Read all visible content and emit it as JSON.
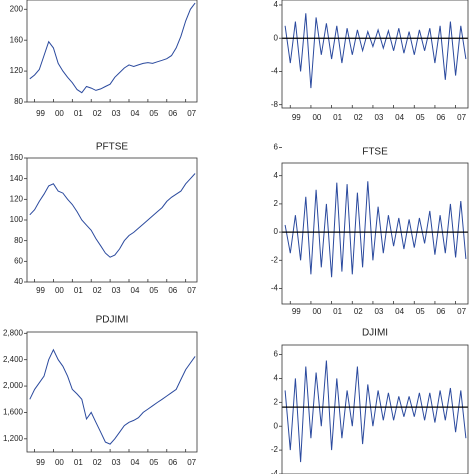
{
  "chart_data": [
    {
      "type": "line",
      "x": [
        1998.75,
        1999,
        1999.25,
        1999.5,
        1999.75,
        2000,
        2000.25,
        2000.5,
        2000.75,
        2001,
        2001.25,
        2001.5,
        2001.75,
        2002,
        2002.25,
        2002.5,
        2002.75,
        2003,
        2003.25,
        2003.5,
        2003.75,
        2004,
        2004.25,
        2004.5,
        2004.75,
        2005,
        2005.25,
        2005.5,
        2005.75,
        2006,
        2006.25,
        2006.5,
        2006.75,
        2007,
        2007.25,
        2007.5
      ],
      "series": [
        {
          "color": "#2b4a9e",
          "values": [
            110,
            115,
            122,
            140,
            158,
            150,
            130,
            120,
            112,
            105,
            96,
            92,
            100,
            98,
            95,
            97,
            100,
            103,
            112,
            118,
            124,
            128,
            126,
            128,
            130,
            131,
            130,
            132,
            134,
            136,
            140,
            150,
            165,
            185,
            200,
            208
          ]
        }
      ],
      "xlim": [
        1998.6,
        2007.6
      ],
      "xticks": [
        {
          "value": 1999,
          "label": "99"
        },
        {
          "value": 2000,
          "label": "00"
        },
        {
          "value": 2001,
          "label": "01"
        },
        {
          "value": 2002,
          "label": "02"
        },
        {
          "value": 2003,
          "label": "03"
        },
        {
          "value": 2004,
          "label": "04"
        },
        {
          "value": 2005,
          "label": "05"
        },
        {
          "value": 2006,
          "label": "06"
        },
        {
          "value": 2007,
          "label": "07"
        }
      ],
      "ylim": [
        80,
        212
      ],
      "yticks": [
        80,
        120,
        160,
        200
      ]
    },
    {
      "type": "line",
      "x": [
        1998.75,
        1999,
        1999.25,
        1999.5,
        1999.75,
        2000,
        2000.25,
        2000.5,
        2000.75,
        2001,
        2001.25,
        2001.5,
        2001.75,
        2002,
        2002.25,
        2002.5,
        2002.75,
        2003,
        2003.25,
        2003.5,
        2003.75,
        2004,
        2004.25,
        2004.5,
        2004.75,
        2005,
        2005.25,
        2005.5,
        2005.75,
        2006,
        2006.25,
        2006.5,
        2006.75,
        2007,
        2007.25,
        2007.5
      ],
      "series": [
        {
          "color": "#2b4a9e",
          "values": [
            1.5,
            -3,
            2,
            -4,
            3,
            -6,
            2.5,
            -2,
            1.8,
            -2.5,
            1.5,
            -3,
            1.2,
            -2,
            1,
            -1.5,
            0.8,
            -1,
            1,
            -1.2,
            0.9,
            -1.5,
            1.2,
            -1.8,
            0.8,
            -2,
            1,
            -1.5,
            1.2,
            -3,
            1.5,
            -5,
            2,
            -4.5,
            1.5,
            -2.5
          ]
        }
      ],
      "hline": 0,
      "xlim": [
        1998.6,
        2007.6
      ],
      "xticks": [
        {
          "value": 1999,
          "label": "99"
        },
        {
          "value": 2000,
          "label": "00"
        },
        {
          "value": 2001,
          "label": "01"
        },
        {
          "value": 2002,
          "label": "02"
        },
        {
          "value": 2003,
          "label": "03"
        },
        {
          "value": 2004,
          "label": "04"
        },
        {
          "value": 2005,
          "label": "05"
        },
        {
          "value": 2006,
          "label": "06"
        },
        {
          "value": 2007,
          "label": "07"
        }
      ],
      "ylim": [
        -8.4,
        4.6
      ],
      "yticks": [
        -8,
        -4,
        0,
        4
      ]
    },
    {
      "type": "line",
      "title": "PFTSE",
      "x": [
        1998.75,
        1999,
        1999.25,
        1999.5,
        1999.75,
        2000,
        2000.25,
        2000.5,
        2000.75,
        2001,
        2001.25,
        2001.5,
        2001.75,
        2002,
        2002.25,
        2002.5,
        2002.75,
        2003,
        2003.25,
        2003.5,
        2003.75,
        2004,
        2004.25,
        2004.5,
        2004.75,
        2005,
        2005.25,
        2005.5,
        2005.75,
        2006,
        2006.25,
        2006.5,
        2006.75,
        2007,
        2007.25,
        2007.5
      ],
      "series": [
        {
          "color": "#2b4a9e",
          "values": [
            105,
            110,
            118,
            125,
            133,
            135,
            128,
            126,
            120,
            115,
            108,
            100,
            95,
            90,
            82,
            75,
            68,
            64,
            66,
            72,
            80,
            85,
            88,
            92,
            96,
            100,
            104,
            108,
            112,
            118,
            122,
            125,
            128,
            135,
            140,
            145
          ]
        }
      ],
      "xlim": [
        1998.6,
        2007.6
      ],
      "xticks": [
        {
          "value": 1999,
          "label": "99"
        },
        {
          "value": 2000,
          "label": "00"
        },
        {
          "value": 2001,
          "label": "01"
        },
        {
          "value": 2002,
          "label": "02"
        },
        {
          "value": 2003,
          "label": "03"
        },
        {
          "value": 2004,
          "label": "04"
        },
        {
          "value": 2005,
          "label": "05"
        },
        {
          "value": 2006,
          "label": "06"
        },
        {
          "value": 2007,
          "label": "07"
        }
      ],
      "ylim": [
        40,
        160
      ],
      "yticks": [
        40,
        60,
        80,
        100,
        120,
        140,
        160
      ]
    },
    {
      "type": "line",
      "title": "FTSE",
      "x": [
        1998.75,
        1999,
        1999.25,
        1999.5,
        1999.75,
        2000,
        2000.25,
        2000.5,
        2000.75,
        2001,
        2001.25,
        2001.5,
        2001.75,
        2002,
        2002.25,
        2002.5,
        2002.75,
        2003,
        2003.25,
        2003.5,
        2003.75,
        2004,
        2004.25,
        2004.5,
        2004.75,
        2005,
        2005.25,
        2005.5,
        2005.75,
        2006,
        2006.25,
        2006.5,
        2006.75,
        2007,
        2007.25,
        2007.5
      ],
      "series": [
        {
          "color": "#2b4a9e",
          "values": [
            0.5,
            -1.5,
            1.2,
            -2,
            2.5,
            -3,
            3,
            -2.5,
            2,
            -3.2,
            3.5,
            -2.8,
            3.4,
            -3,
            2.8,
            -2.5,
            3.6,
            -2,
            1.8,
            -1.5,
            1.2,
            -1,
            1,
            -1.2,
            0.9,
            -1.1,
            1,
            -0.8,
            1.5,
            -1.6,
            1.2,
            -1.5,
            2,
            -1.8,
            2.2,
            -1.9
          ]
        }
      ],
      "hline": 0,
      "xlim": [
        1998.6,
        2007.6
      ],
      "xticks": [
        {
          "value": 1999,
          "label": "99"
        },
        {
          "value": 2000,
          "label": "00"
        },
        {
          "value": 2001,
          "label": "01"
        },
        {
          "value": 2002,
          "label": "02"
        },
        {
          "value": 2003,
          "label": "03"
        },
        {
          "value": 2004,
          "label": "04"
        },
        {
          "value": 2005,
          "label": "05"
        },
        {
          "value": 2006,
          "label": "06"
        },
        {
          "value": 2007,
          "label": "07"
        }
      ],
      "ylim": [
        -5.1,
        4.9
      ],
      "yticks": [
        -4,
        -2,
        0,
        2,
        4,
        6
      ]
    },
    {
      "type": "line",
      "title": "PDJIMI",
      "x": [
        1998.75,
        1999,
        1999.25,
        1999.5,
        1999.75,
        2000,
        2000.25,
        2000.5,
        2000.75,
        2001,
        2001.25,
        2001.5,
        2001.75,
        2002,
        2002.25,
        2002.5,
        2002.75,
        2003,
        2003.25,
        2003.5,
        2003.75,
        2004,
        2004.25,
        2004.5,
        2004.75,
        2005,
        2005.25,
        2005.5,
        2005.75,
        2006,
        2006.25,
        2006.5,
        2006.75,
        2007,
        2007.25,
        2007.5
      ],
      "series": [
        {
          "color": "#2b4a9e",
          "values": [
            1800,
            1950,
            2050,
            2150,
            2400,
            2550,
            2400,
            2300,
            2150,
            1950,
            1880,
            1800,
            1500,
            1600,
            1450,
            1300,
            1150,
            1120,
            1200,
            1300,
            1400,
            1450,
            1480,
            1520,
            1600,
            1650,
            1700,
            1750,
            1800,
            1850,
            1900,
            1950,
            2100,
            2250,
            2350,
            2450
          ]
        }
      ],
      "xlim": [
        1998.6,
        2007.6
      ],
      "xticks": [
        {
          "value": 1999,
          "label": "99"
        },
        {
          "value": 2000,
          "label": "00"
        },
        {
          "value": 2001,
          "label": "01"
        },
        {
          "value": 2002,
          "label": "02"
        },
        {
          "value": 2003,
          "label": "03"
        },
        {
          "value": 2004,
          "label": "04"
        },
        {
          "value": 2005,
          "label": "05"
        },
        {
          "value": 2006,
          "label": "06"
        },
        {
          "value": 2007,
          "label": "07"
        }
      ],
      "ylim": [
        1000,
        2820
      ],
      "yticks": [
        {
          "value": 1200,
          "label": "1,200"
        },
        {
          "value": 1600,
          "label": "1,600"
        },
        {
          "value": 2000,
          "label": "2,000"
        },
        {
          "value": 2400,
          "label": "2,400"
        },
        {
          "value": 2800,
          "label": "2,800"
        }
      ]
    },
    {
      "type": "line",
      "title": "DJIMI",
      "x": [
        1998.75,
        1999,
        1999.25,
        1999.5,
        1999.75,
        2000,
        2000.25,
        2000.5,
        2000.75,
        2001,
        2001.25,
        2001.5,
        2001.75,
        2002,
        2002.25,
        2002.5,
        2002.75,
        2003,
        2003.25,
        2003.5,
        2003.75,
        2004,
        2004.25,
        2004.5,
        2004.75,
        2005,
        2005.25,
        2005.5,
        2005.75,
        2006,
        2006.25,
        2006.5,
        2006.75,
        2007,
        2007.25,
        2007.5
      ],
      "series": [
        {
          "color": "#2b4a9e",
          "values": [
            3,
            -2,
            4,
            -3,
            5,
            -1,
            4.5,
            0,
            5.5,
            -2,
            4,
            -1,
            3,
            0,
            5,
            -1.5,
            3.5,
            0,
            3,
            0.5,
            2.8,
            0.5,
            2.5,
            0.8,
            2.5,
            0.8,
            2.8,
            0.5,
            2.8,
            0.3,
            3,
            0.5,
            3.2,
            -0.5,
            3,
            -1
          ]
        }
      ],
      "hline": 1.6,
      "xlim": [
        1998.6,
        2007.6
      ],
      "ylim": [
        -4,
        6.8
      ],
      "yticks": [
        -4,
        -2,
        0,
        2,
        4,
        6
      ]
    }
  ]
}
